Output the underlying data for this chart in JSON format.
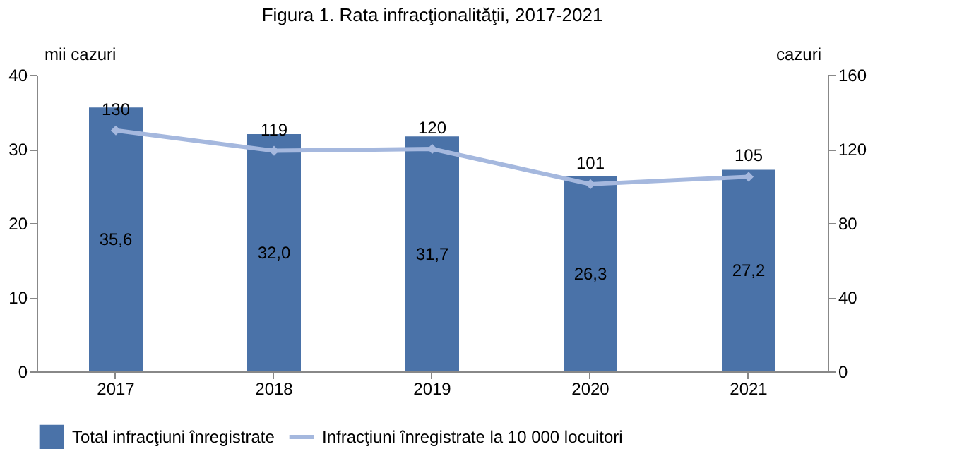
{
  "chart_data": {
    "type": "bar",
    "title": "Figura 1. Rata infracţionalităţii, 2017-2021",
    "ylabel": "mii cazuri",
    "y2label": "cazuri",
    "categories": [
      "2017",
      "2018",
      "2019",
      "2020",
      "2021"
    ],
    "series": [
      {
        "name": "Total infracţiuni înregistrate",
        "color": "#4a72a8",
        "values": [
          35.6,
          32.0,
          31.7,
          26.3,
          27.2
        ],
        "value_labels": [
          "35,6",
          "32,0",
          "31,7",
          "26,3",
          "27,2"
        ]
      },
      {
        "name": "Infracţiuni înregistrate la 10 000 locuitori",
        "type": "line",
        "axis": "y2",
        "color": "#a5b8de",
        "values": [
          130,
          119,
          120,
          101,
          105
        ],
        "value_labels": [
          "130",
          "119",
          "120",
          "101",
          "105"
        ]
      }
    ],
    "ylim": [
      0,
      40
    ],
    "yticks": [
      0,
      10,
      20,
      30,
      40
    ],
    "y2lim": [
      0,
      160
    ],
    "y2ticks": [
      0,
      40,
      80,
      120,
      160
    ],
    "legend": "bottom",
    "marker": "diamond",
    "line_style": "solid"
  }
}
